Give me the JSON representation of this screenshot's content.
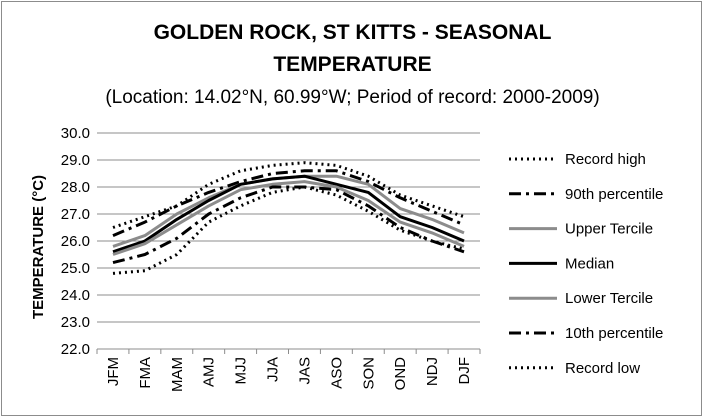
{
  "title_line1": "GOLDEN ROCK, ST KITTS - SEASONAL",
  "title_line2": "TEMPERATURE",
  "subtitle": "(Location: 14.02°N, 60.99°W; Period of record: 2000-2009)",
  "chart_data": {
    "type": "line",
    "title": "GOLDEN ROCK, ST KITTS - SEASONAL TEMPERATURE",
    "subtitle": "(Location: 14.02°N, 60.99°W; Period of record: 2000-2009)",
    "ylabel": "TEMPERATURE (°C)",
    "xlabel": "",
    "ylim": [
      22.0,
      30.0
    ],
    "ytick_step": 1.0,
    "yticks": [
      "22.0",
      "23.0",
      "24.0",
      "25.0",
      "26.0",
      "27.0",
      "28.0",
      "29.0",
      "30.0"
    ],
    "grid": true,
    "legend_position": "right",
    "categories": [
      "JFM",
      "FMA",
      "MAM",
      "AMJ",
      "MJJ",
      "JJA",
      "JAS",
      "ASO",
      "SON",
      "OND",
      "NDJ",
      "DJF"
    ],
    "series": [
      {
        "name": "Record high",
        "color": "#000000",
        "style": "dotted",
        "values": [
          26.5,
          26.9,
          27.3,
          28.1,
          28.6,
          28.8,
          28.9,
          28.8,
          28.4,
          27.7,
          27.3,
          26.9
        ]
      },
      {
        "name": "90th percentile",
        "color": "#000000",
        "style": "dashdot",
        "values": [
          26.2,
          26.7,
          27.3,
          27.8,
          28.2,
          28.5,
          28.6,
          28.6,
          28.2,
          27.6,
          27.1,
          26.6
        ]
      },
      {
        "name": "Upper Tercile",
        "color": "#8c8c8c",
        "style": "solid",
        "values": [
          25.8,
          26.2,
          27.0,
          27.6,
          28.1,
          28.3,
          28.4,
          28.4,
          28.1,
          27.2,
          26.8,
          26.3
        ]
      },
      {
        "name": "Median",
        "color": "#000000",
        "style": "solid",
        "values": [
          25.6,
          26.0,
          26.8,
          27.5,
          28.1,
          28.3,
          28.4,
          28.1,
          27.8,
          26.9,
          26.5,
          26.0
        ]
      },
      {
        "name": "Lower Tercile",
        "color": "#8c8c8c",
        "style": "solid",
        "values": [
          25.5,
          25.9,
          26.6,
          27.3,
          27.9,
          28.1,
          28.2,
          28.0,
          27.5,
          26.7,
          26.3,
          25.8
        ]
      },
      {
        "name": "10th percentile",
        "color": "#000000",
        "style": "dashdot",
        "values": [
          25.2,
          25.5,
          26.1,
          27.0,
          27.6,
          28.0,
          28.0,
          27.9,
          27.3,
          26.5,
          26.0,
          25.6
        ]
      },
      {
        "name": "Record low",
        "color": "#000000",
        "style": "dotted",
        "values": [
          24.8,
          24.9,
          25.5,
          26.7,
          27.3,
          27.8,
          28.0,
          27.7,
          27.1,
          26.4,
          26.0,
          25.7
        ]
      }
    ]
  }
}
